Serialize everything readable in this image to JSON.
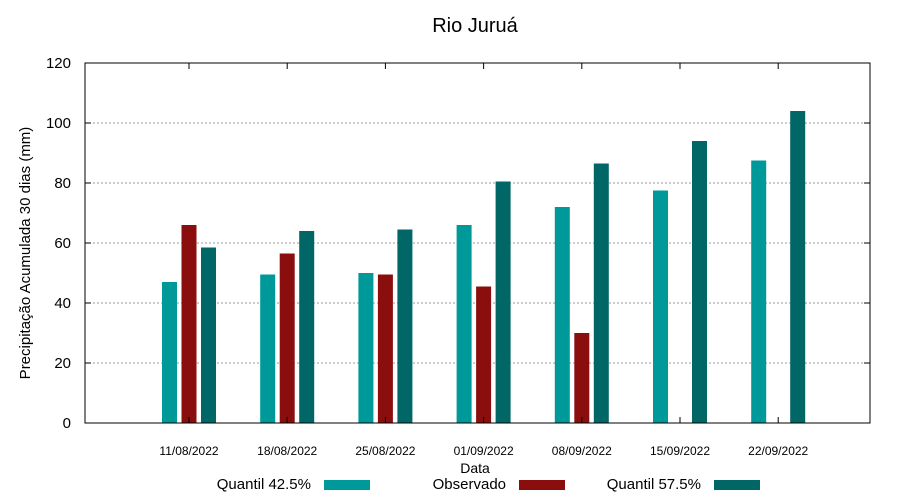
{
  "chart_data": {
    "type": "bar",
    "title": "Rio Juruá",
    "xlabel": "Data",
    "ylabel": "Precipitação Acumulada 30 dias (mm)",
    "ylim": [
      0,
      120
    ],
    "yticks": [
      0,
      20,
      40,
      60,
      80,
      100,
      120
    ],
    "grid": true,
    "legend_position": "bottom",
    "categories": [
      "11/08/2022",
      "18/08/2022",
      "25/08/2022",
      "01/09/2022",
      "08/09/2022",
      "15/09/2022",
      "22/09/2022"
    ],
    "series": [
      {
        "name": "Quantil 42.5%",
        "color": "#009999",
        "values": [
          47,
          49.5,
          50,
          66,
          72,
          77.5,
          87.5
        ]
      },
      {
        "name": "Observado",
        "color": "#8b0e0e",
        "values": [
          66,
          56.5,
          49.5,
          45.5,
          30,
          null,
          null
        ]
      },
      {
        "name": "Quantil 57.5%",
        "color": "#006666",
        "values": [
          58.5,
          64,
          64.5,
          80.5,
          86.5,
          94,
          104
        ]
      }
    ]
  }
}
